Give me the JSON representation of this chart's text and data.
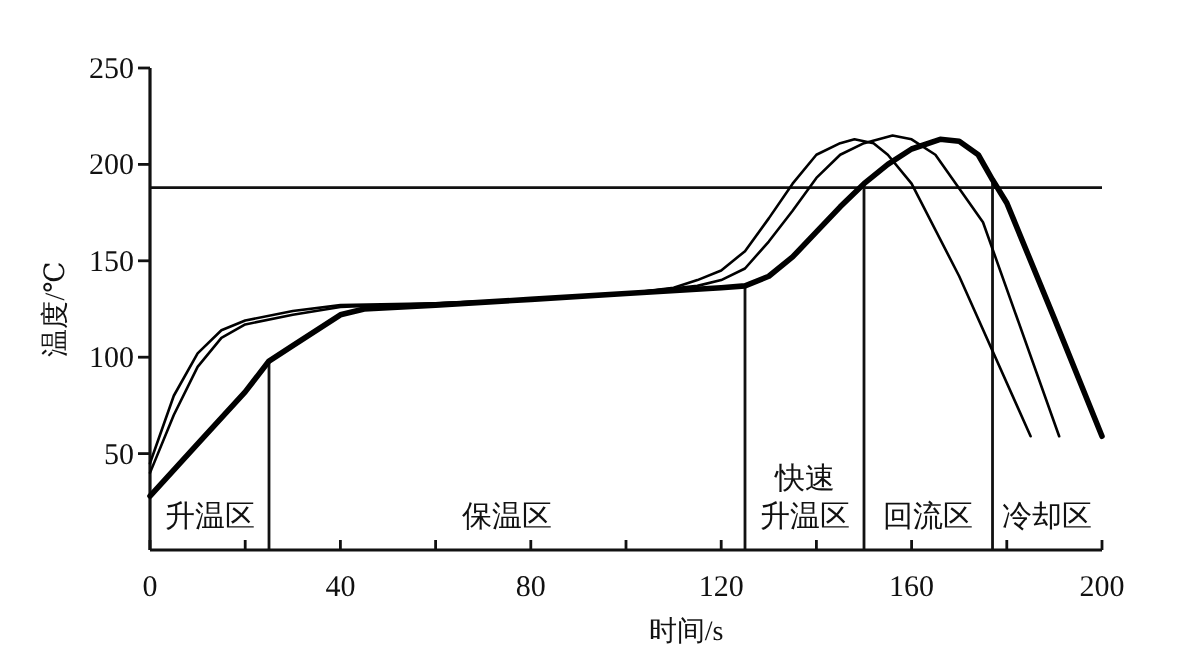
{
  "chart_data": {
    "type": "line",
    "xlabel": "时间/s",
    "ylabel": "温度/℃",
    "xlim": [
      0,
      200
    ],
    "ylim": [
      0,
      250
    ],
    "xticks": [
      0,
      {
        "value": 20,
        "label": null
      },
      40,
      {
        "value": 60,
        "label": null
      },
      80,
      {
        "value": 100,
        "label": null
      },
      120,
      {
        "value": 140,
        "label": null
      },
      160,
      {
        "value": 180,
        "label": null
      },
      200
    ],
    "yticks": [
      50,
      100,
      150,
      200,
      250
    ],
    "grid": false,
    "marker": "none",
    "line_style": "solid",
    "series": [
      {
        "color": "#000000",
        "x": [
          0,
          5,
          10,
          15,
          20,
          30,
          40,
          60,
          80,
          100,
          110,
          115,
          120,
          125,
          130,
          135,
          140,
          145,
          148,
          152,
          155,
          160,
          170,
          185
        ],
        "values": [
          45,
          80,
          102,
          114,
          119,
          124,
          127,
          128,
          130,
          133,
          136,
          140,
          145,
          155,
          172,
          190,
          205,
          211,
          213,
          211,
          205,
          190,
          142,
          59
        ]
      },
      {
        "color": "#000000",
        "x": [
          0,
          5,
          10,
          15,
          20,
          30,
          40,
          60,
          80,
          100,
          115,
          120,
          125,
          130,
          135,
          140,
          145,
          150,
          156,
          160,
          165,
          175,
          191
        ],
        "values": [
          40,
          70,
          95,
          110,
          117,
          122,
          126,
          128,
          130,
          133,
          137,
          140,
          146,
          160,
          176,
          193,
          205,
          211,
          215,
          213,
          205,
          170,
          59
        ]
      },
      {
        "color": "#000000",
        "x": [
          0,
          10,
          20,
          25,
          30,
          40,
          45,
          60,
          80,
          100,
          120,
          125,
          130,
          135,
          140,
          145,
          150,
          155,
          160,
          166,
          170,
          174,
          177,
          180,
          190,
          200
        ],
        "values": [
          28,
          55,
          82,
          98,
          106,
          122,
          125,
          127,
          130,
          133,
          136,
          137,
          142,
          152,
          165,
          178,
          190,
          200,
          208,
          213,
          212,
          205,
          192,
          180,
          120,
          59
        ]
      }
    ],
    "ref_lines": [
      {
        "axis": "y",
        "value": 188
      },
      {
        "axis": "x",
        "value": 25
      },
      {
        "axis": "x",
        "value": 125
      },
      {
        "axis": "x",
        "value": 150
      },
      {
        "axis": "x",
        "value": 177
      }
    ],
    "annotations": [
      "升温区",
      "保温区",
      "快速升温区",
      "回流区",
      "冷却区"
    ]
  }
}
